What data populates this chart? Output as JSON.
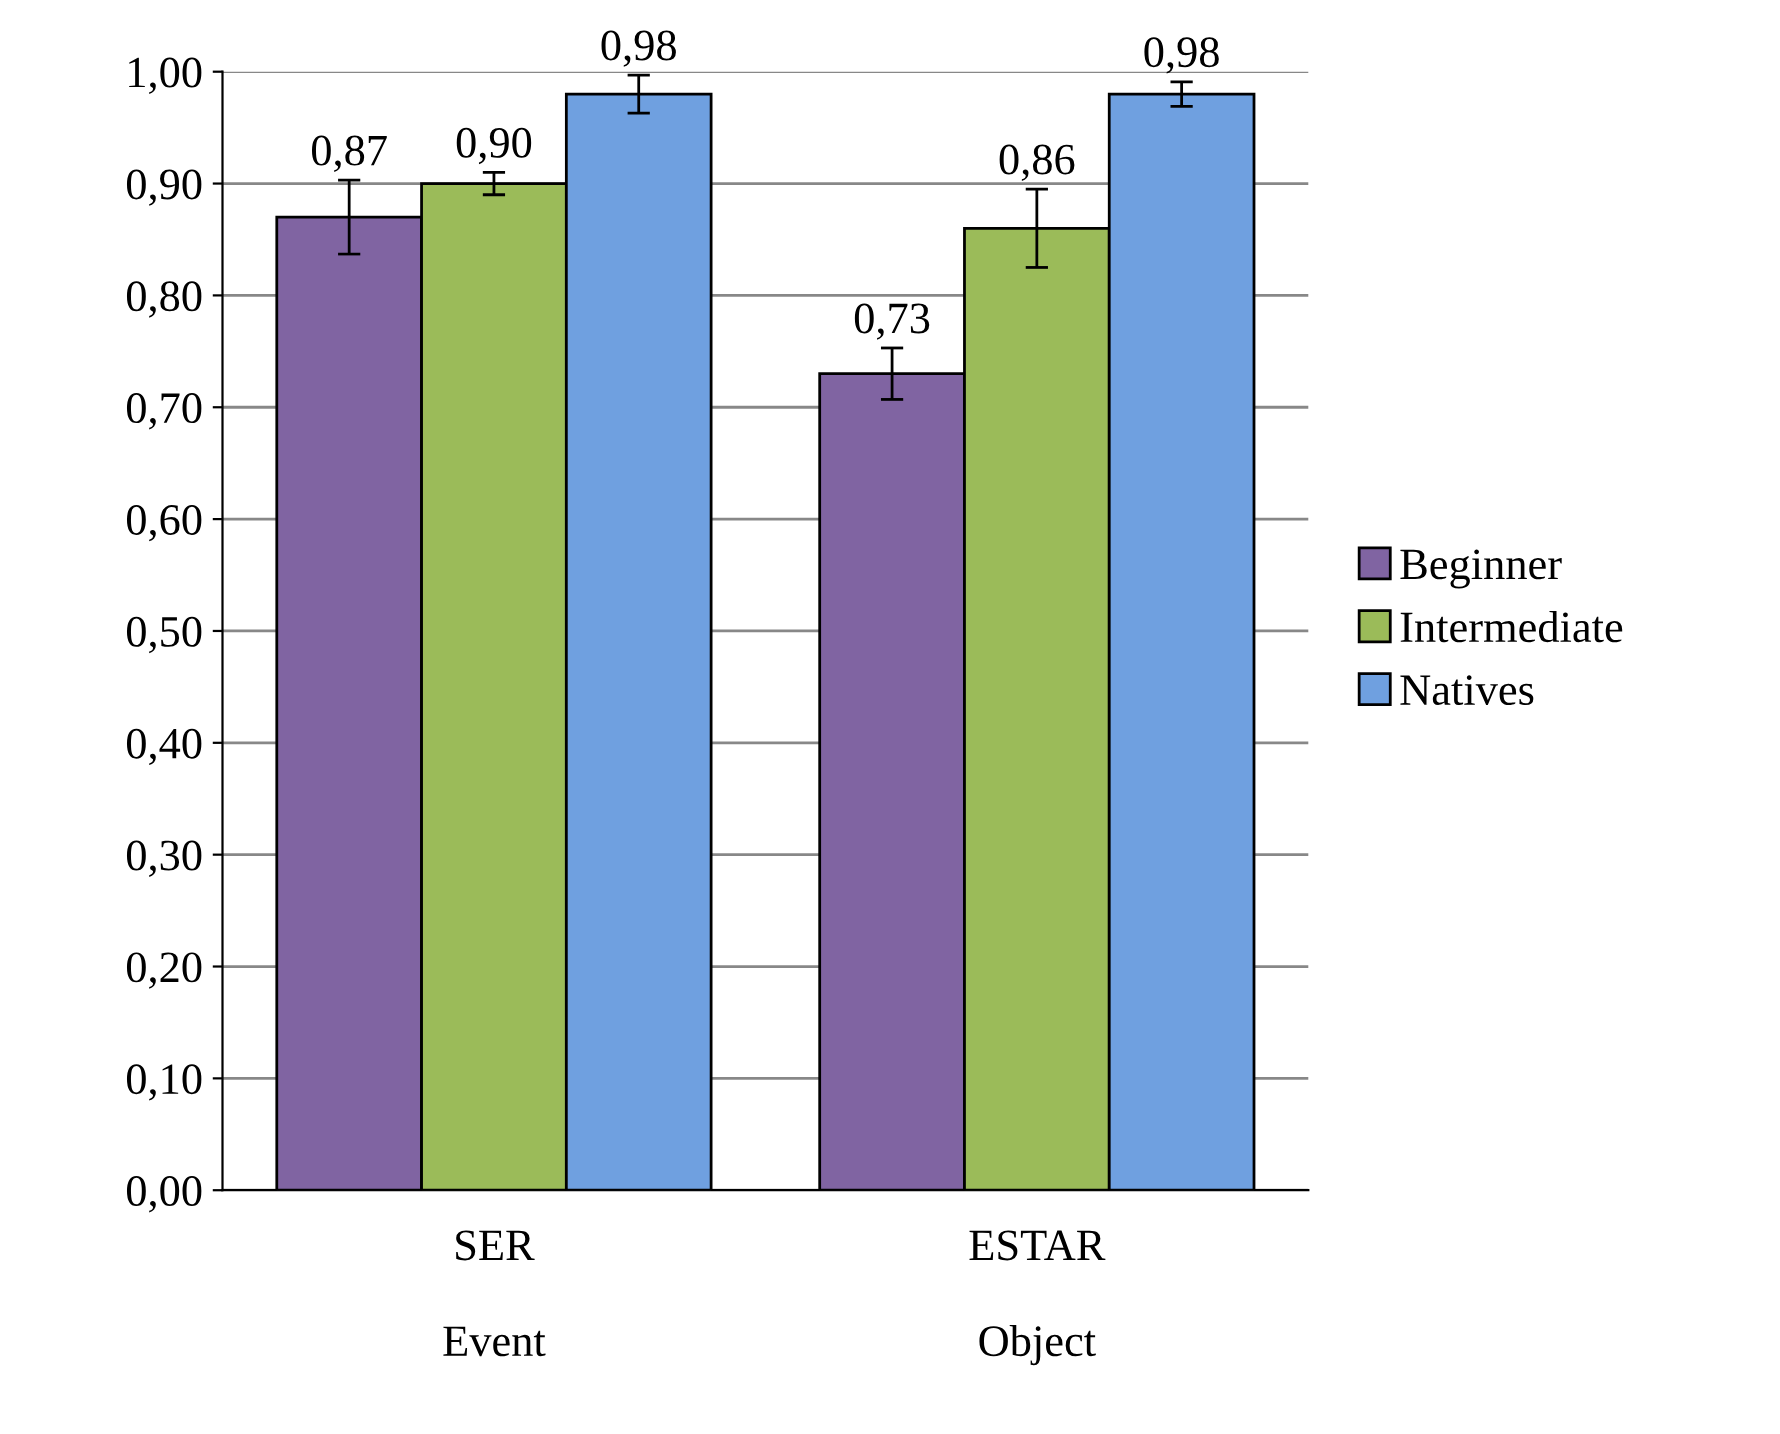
{
  "chart_data": {
    "type": "bar",
    "categories": [
      "SER\nEvent",
      "ESTAR\nObject"
    ],
    "series": [
      {
        "name": "Beginner",
        "color": "#8064a2",
        "values": [
          0.87,
          0.73
        ],
        "errors": [
          0.033,
          0.023
        ],
        "value_labels": [
          "0,87",
          "0,73"
        ]
      },
      {
        "name": "Intermediate",
        "color": "#9bbb59",
        "values": [
          0.9,
          0.86
        ],
        "errors": [
          0.01,
          0.035
        ],
        "value_labels": [
          "0,90",
          "0,86"
        ]
      },
      {
        "name": "Natives",
        "color": "#6fa0e0",
        "values": [
          0.98,
          0.98
        ],
        "errors": [
          0.017,
          0.011
        ],
        "value_labels": [
          "0,98",
          "0,98"
        ]
      }
    ],
    "ylim": [
      0,
      1
    ],
    "yticks": [
      {
        "value": 0,
        "label": "0,00"
      },
      {
        "value": 0.1,
        "label": "0,10"
      },
      {
        "value": 0.2,
        "label": "0,20"
      },
      {
        "value": 0.3,
        "label": "0,30"
      },
      {
        "value": 0.4,
        "label": "0,40"
      },
      {
        "value": 0.5,
        "label": "0,50"
      },
      {
        "value": 0.6,
        "label": "0,60"
      },
      {
        "value": 0.7,
        "label": "0,70"
      },
      {
        "value": 0.8,
        "label": "0,80"
      },
      {
        "value": 0.9,
        "label": "0,90"
      },
      {
        "value": 1,
        "label": "1,00"
      }
    ],
    "grid": "y",
    "legend": "right"
  }
}
